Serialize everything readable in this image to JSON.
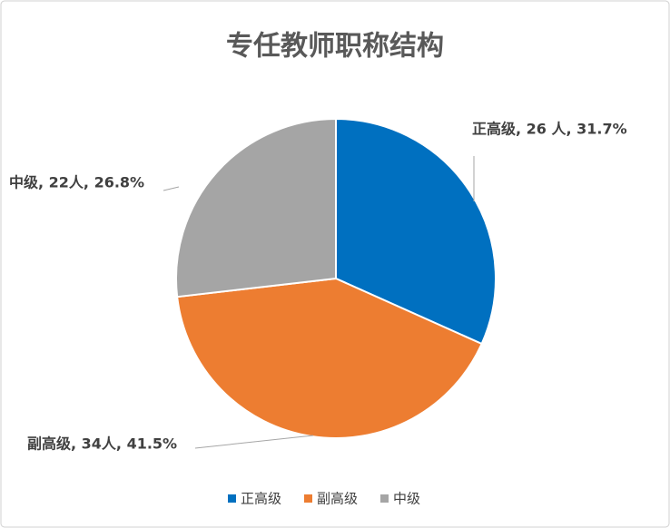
{
  "chart_data": {
    "type": "pie",
    "title": "专任教师职称结构",
    "categories": [
      "正高级",
      "副高级",
      "中级"
    ],
    "values": [
      26,
      34,
      22
    ],
    "value_labels": [
      "正高级, 26 人, 31.7%",
      "副高级, 34人, 41.5%",
      "中级, 22人, 26.8%"
    ],
    "colors": [
      "#0070c0",
      "#ed7d31",
      "#a5a5a5"
    ],
    "legend": "bottom"
  }
}
